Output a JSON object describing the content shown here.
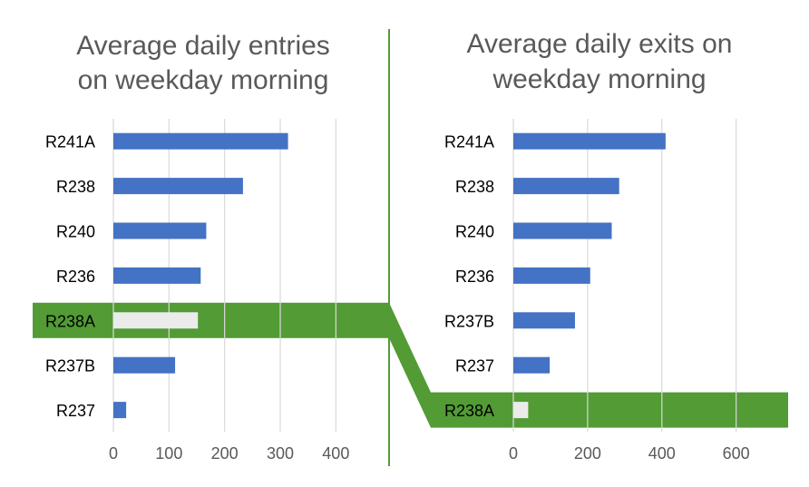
{
  "colors": {
    "bar": "#4472C4",
    "highlight": "#529B35",
    "highlight_bar": "#EBEBEB",
    "divider": "#529B35",
    "grid": "#D9D9D9",
    "text": "#000000",
    "title": "#595959",
    "tick": "#595959"
  },
  "chart_data": [
    {
      "type": "bar",
      "orientation": "horizontal",
      "title": "Average daily entries on weekday morning",
      "title_lines": [
        "Average daily entries",
        "on weekday morning"
      ],
      "categories": [
        "R241A",
        "R238",
        "R240",
        "R236",
        "R238A",
        "R237B",
        "R237"
      ],
      "values": [
        314,
        233,
        167,
        157,
        152,
        111,
        23
      ],
      "highlight": "R238A",
      "xlim": [
        0,
        450
      ],
      "xticks": [
        0,
        100,
        200,
        300,
        400
      ],
      "xtick_labels": [
        "0",
        "100",
        "200",
        "300",
        "400"
      ],
      "grid": true,
      "legend": "none"
    },
    {
      "type": "bar",
      "orientation": "horizontal",
      "title": "Average daily exits on weekday morning",
      "title_lines": [
        "Average daily exits on",
        "weekday morning"
      ],
      "categories": [
        "R241A",
        "R238",
        "R240",
        "R236",
        "R237B",
        "R237",
        "R238A"
      ],
      "values": [
        410,
        285,
        265,
        207,
        166,
        98,
        40
      ],
      "highlight": "R238A",
      "xlim": [
        0,
        740
      ],
      "xticks": [
        0,
        200,
        400,
        600
      ],
      "xtick_labels": [
        "0",
        "200",
        "400",
        "600"
      ],
      "grid": true,
      "legend": "none"
    }
  ]
}
